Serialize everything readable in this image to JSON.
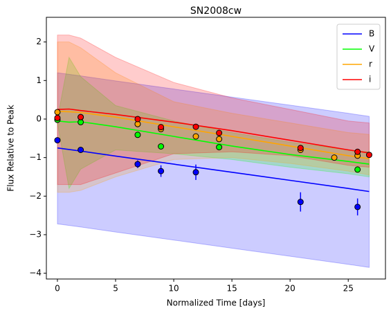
{
  "chart_data": {
    "type": "line",
    "title": "SN2008cw",
    "x_label": "Normalized Time [days]",
    "y_label": "Flux Relative to Peak",
    "xlim": [
      -0.95,
      28.2
    ],
    "ylim": [
      -4.15,
      2.64
    ],
    "xticks": [
      0,
      5,
      10,
      15,
      20,
      25
    ],
    "yticks": [
      {
        "value": -4,
        "label": "−4"
      },
      {
        "value": -3,
        "label": "−3"
      },
      {
        "value": -2,
        "label": "−2"
      },
      {
        "value": -1,
        "label": "−1"
      },
      0,
      1,
      2
    ],
    "legend": "upper right",
    "series": [
      {
        "name": "B",
        "color": "#0000ff",
        "x": [
          0,
          1,
          2,
          5,
          10,
          15,
          20,
          25,
          26.8
        ],
        "values": [
          -0.75,
          -0.79,
          -0.83,
          -0.96,
          -1.17,
          -1.38,
          -1.59,
          -1.8,
          -1.88
        ],
        "upper": [
          1.2,
          1.16,
          1.12,
          0.99,
          0.78,
          0.57,
          0.36,
          0.15,
          0.07
        ],
        "lower": [
          -2.72,
          -2.76,
          -2.8,
          -2.93,
          -3.14,
          -3.35,
          -3.56,
          -3.77,
          -3.85
        ],
        "obs_x": [
          0,
          2,
          6.9,
          8.9,
          11.9,
          20.9,
          25.8
        ],
        "obs_values": [
          -0.55,
          -0.8,
          -1.17,
          -1.35,
          -1.38,
          -2.15,
          -2.28
        ],
        "obs_err": [
          0.02,
          0.02,
          0.1,
          0.15,
          0.2,
          0.25,
          0.22
        ]
      },
      {
        "name": "V",
        "color": "#00ff00",
        "x": [
          0,
          1,
          2,
          5,
          10,
          15,
          20,
          25,
          26.8
        ],
        "values": [
          -0.05,
          -0.08,
          -0.07,
          -0.2,
          -0.45,
          -0.7,
          -0.92,
          -1.1,
          -1.17
        ],
        "upper": [
          0.0,
          1.6,
          1.1,
          0.35,
          -0.05,
          -0.35,
          -0.6,
          -0.8,
          -0.85
        ],
        "lower": [
          -0.1,
          -1.8,
          -1.3,
          -0.8,
          -0.9,
          -1.05,
          -1.25,
          -1.42,
          -1.5
        ],
        "obs_x": [
          0,
          2,
          6.9,
          8.9,
          13.9,
          25.8
        ],
        "obs_values": [
          -0.02,
          -0.08,
          -0.41,
          -0.71,
          -0.73,
          -1.31
        ]
      },
      {
        "name": "r",
        "color": "#ffa500",
        "x": [
          0,
          1,
          2,
          5,
          10,
          15,
          20,
          25,
          26.8
        ],
        "values": [
          0.2,
          0.19,
          0.17,
          0.05,
          -0.2,
          -0.45,
          -0.7,
          -0.95,
          -1.03
        ],
        "upper": [
          2.0,
          2.0,
          1.85,
          1.2,
          0.45,
          0.15,
          -0.1,
          -0.35,
          -0.4
        ],
        "lower": [
          -1.9,
          -1.9,
          -1.85,
          -1.5,
          -1.05,
          -1.0,
          -1.15,
          -1.35,
          -1.45
        ],
        "obs_x": [
          0,
          2,
          6.9,
          8.9,
          11.9,
          13.9,
          20.9,
          23.8,
          25.8
        ],
        "obs_values": [
          0.18,
          0.05,
          -0.13,
          -0.26,
          -0.45,
          -0.52,
          -0.8,
          -1.0,
          -0.95
        ]
      },
      {
        "name": "i",
        "color": "#ff0000",
        "x": [
          0,
          1,
          2,
          5,
          10,
          15,
          20,
          25,
          26.8
        ],
        "values": [
          0.25,
          0.26,
          0.22,
          0.12,
          -0.08,
          -0.3,
          -0.55,
          -0.8,
          -0.88
        ],
        "upper": [
          2.18,
          2.18,
          2.1,
          1.6,
          0.95,
          0.55,
          0.25,
          -0.05,
          -0.1
        ],
        "lower": [
          -1.7,
          -1.7,
          -1.7,
          -1.4,
          -0.9,
          -0.85,
          -0.95,
          -1.2,
          -1.25
        ],
        "obs_x": [
          0,
          2,
          6.9,
          8.9,
          11.9,
          13.9,
          20.9,
          25.8,
          26.8
        ],
        "obs_values": [
          0.03,
          0.05,
          0.0,
          -0.21,
          -0.2,
          -0.36,
          -0.75,
          -0.85,
          -0.93
        ]
      }
    ]
  }
}
